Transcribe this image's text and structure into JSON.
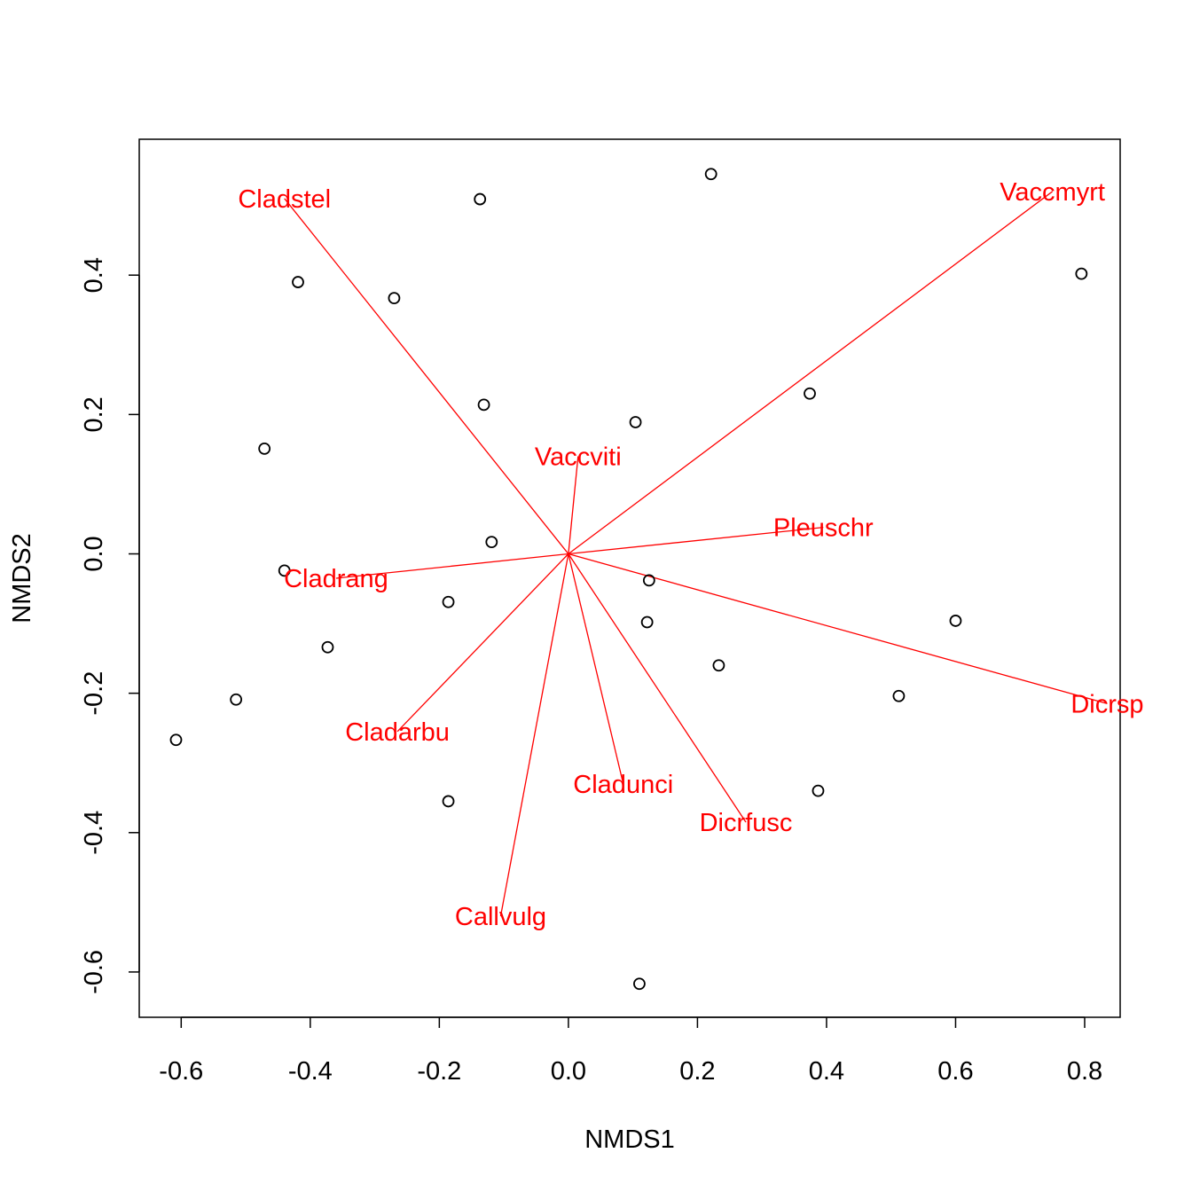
{
  "chart_data": {
    "type": "scatter",
    "title": "",
    "xlabel": "NMDS1",
    "ylabel": "NMDS2",
    "xlim": [
      -0.665,
      0.855
    ],
    "ylim": [
      -0.665,
      0.595
    ],
    "xticks": [
      -0.6,
      -0.4,
      -0.2,
      0.0,
      0.2,
      0.4,
      0.6,
      0.8
    ],
    "xtick_labels": [
      "-0.6",
      "-0.4",
      "-0.2",
      "0.0",
      "0.2",
      "0.4",
      "0.6",
      "0.8"
    ],
    "yticks": [
      -0.6,
      -0.4,
      -0.2,
      0.0,
      0.2,
      0.4
    ],
    "ytick_labels": [
      "-0.6",
      "-0.4",
      "-0.2",
      "0.0",
      "0.2",
      "0.4"
    ],
    "grid": false,
    "legend": "none",
    "point_color": "#000000",
    "vector_color": "#ff0000",
    "sites": [
      {
        "x": -0.608,
        "y": -0.267
      },
      {
        "x": -0.515,
        "y": -0.209
      },
      {
        "x": -0.471,
        "y": 0.151
      },
      {
        "x": -0.44,
        "y": -0.024
      },
      {
        "x": -0.419,
        "y": 0.39
      },
      {
        "x": -0.373,
        "y": -0.134
      },
      {
        "x": -0.27,
        "y": 0.367
      },
      {
        "x": -0.186,
        "y": -0.069
      },
      {
        "x": -0.186,
        "y": -0.355
      },
      {
        "x": -0.137,
        "y": 0.509
      },
      {
        "x": -0.131,
        "y": 0.214
      },
      {
        "x": -0.119,
        "y": 0.017
      },
      {
        "x": 0.104,
        "y": 0.189
      },
      {
        "x": 0.11,
        "y": -0.617
      },
      {
        "x": 0.122,
        "y": -0.098
      },
      {
        "x": 0.125,
        "y": -0.038
      },
      {
        "x": 0.221,
        "y": 0.545
      },
      {
        "x": 0.233,
        "y": -0.16
      },
      {
        "x": 0.374,
        "y": 0.23
      },
      {
        "x": 0.387,
        "y": -0.34
      },
      {
        "x": 0.512,
        "y": -0.204
      },
      {
        "x": 0.6,
        "y": -0.096
      },
      {
        "x": 0.795,
        "y": 0.402
      }
    ],
    "species_vectors": [
      {
        "name": "Cladstel",
        "x": -0.44,
        "y": 0.51
      },
      {
        "name": "Vaccmyrt",
        "x": 0.75,
        "y": 0.52
      },
      {
        "name": "Vaccviti",
        "x": 0.015,
        "y": 0.14
      },
      {
        "name": "Pleuschr",
        "x": 0.395,
        "y": 0.038
      },
      {
        "name": "Cladrang",
        "x": -0.36,
        "y": -0.035
      },
      {
        "name": "Dicrsp",
        "x": 0.835,
        "y": -0.215
      },
      {
        "name": "Cladarbu",
        "x": -0.265,
        "y": -0.255
      },
      {
        "name": "Cladunci",
        "x": 0.085,
        "y": -0.33
      },
      {
        "name": "Dicrfusc",
        "x": 0.275,
        "y": -0.385
      },
      {
        "name": "Callvulg",
        "x": -0.105,
        "y": -0.52
      }
    ]
  }
}
